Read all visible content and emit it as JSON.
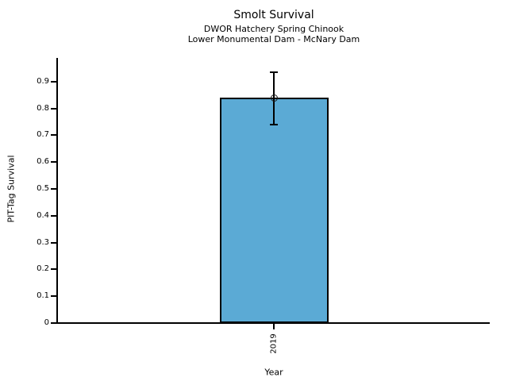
{
  "chart_data": {
    "type": "bar",
    "title": "Smolt Survival",
    "subtitle1": "DWOR Hatchery Spring Chinook",
    "subtitle2": "Lower Monumental Dam - McNary Dam",
    "xlabel": "Year",
    "ylabel": "PIT-Tag Survival",
    "categories": [
      "2019"
    ],
    "values": [
      0.84
    ],
    "error_upper": [
      0.935
    ],
    "error_lower": [
      0.74
    ],
    "ylim": [
      0,
      0.988
    ],
    "yticks": [
      0,
      0.1,
      0.2,
      0.3,
      0.4,
      0.5,
      0.6,
      0.7,
      0.8,
      0.9
    ],
    "ytick_labels": [
      "0",
      "0.1",
      "0.2",
      "0.3",
      "0.4",
      "0.5",
      "0.6",
      "0.7",
      "0.8",
      "0.9"
    ],
    "legend": "none",
    "grid": "off",
    "bar_color": "#5baad5",
    "bar_edge_color": "#000000",
    "error_color": "#000000",
    "marker": "open-circle"
  }
}
